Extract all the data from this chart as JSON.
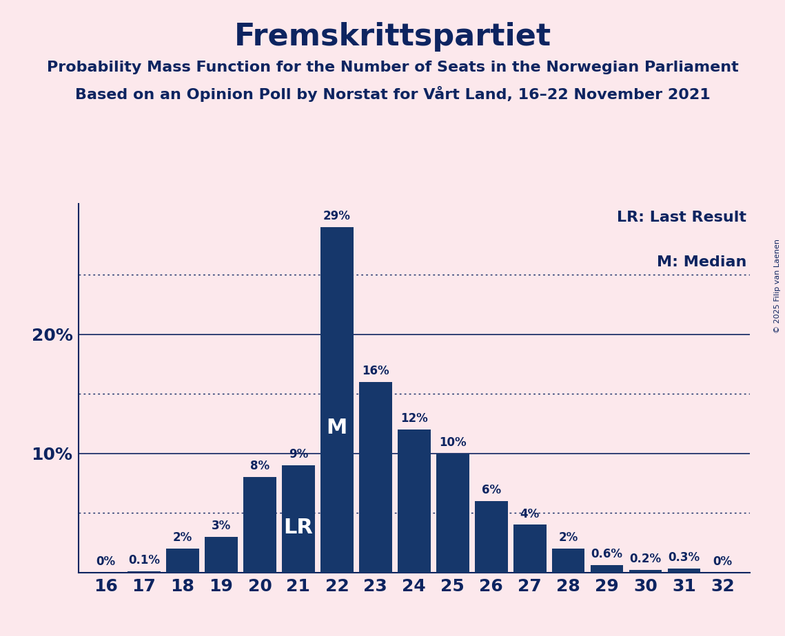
{
  "title": "Fremskrittspartiet",
  "subtitle1": "Probability Mass Function for the Number of Seats in the Norwegian Parliament",
  "subtitle2": "Based on an Opinion Poll by Norstat for Vårt Land, 16–22 November 2021",
  "copyright": "© 2025 Filip van Laenen",
  "seats": [
    16,
    17,
    18,
    19,
    20,
    21,
    22,
    23,
    24,
    25,
    26,
    27,
    28,
    29,
    30,
    31,
    32
  ],
  "probabilities": [
    0.0,
    0.1,
    2.0,
    3.0,
    8.0,
    9.0,
    29.0,
    16.0,
    12.0,
    10.0,
    6.0,
    4.0,
    2.0,
    0.6,
    0.2,
    0.3,
    0.0
  ],
  "labels": [
    "0%",
    "0.1%",
    "2%",
    "3%",
    "8%",
    "9%",
    "29%",
    "16%",
    "12%",
    "10%",
    "6%",
    "4%",
    "2%",
    "0.6%",
    "0.2%",
    "0.3%",
    "0%"
  ],
  "bar_color": "#16376b",
  "background_color": "#fce8ec",
  "text_color": "#0d2460",
  "lr_seat": 21,
  "median_seat": 22,
  "solid_yticks": [
    10,
    20
  ],
  "dotted_yticks": [
    5,
    15,
    25
  ],
  "ylim": [
    0,
    31
  ],
  "title_fontsize": 32,
  "subtitle_fontsize": 16,
  "label_fontsize": 12,
  "tick_fontsize": 18,
  "legend_fontsize": 16
}
